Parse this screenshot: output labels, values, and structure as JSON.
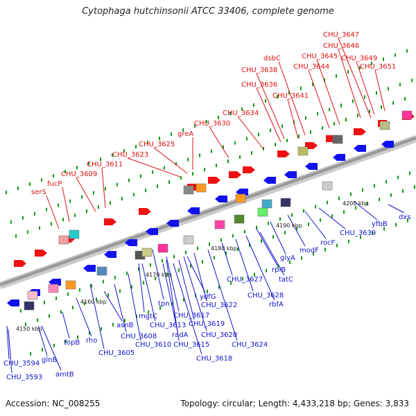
{
  "title": "Cytophaga hutchinsonii ATCC 33406, complete genome",
  "footer": {
    "accession": "Accession: NC_008255",
    "summary": "Topology: circular; Length: 4,433,218 bp; Genes: 3,833"
  },
  "colors": {
    "forward_label": "#dd1111",
    "reverse_label": "#1111cc",
    "backbone": "#999999",
    "tick": "#119911"
  },
  "scale_labels": [
    "4150 kbp",
    "4160 kbp",
    "4170 kbp",
    "4180 kbp",
    "4190 kbp",
    "4200 kbp"
  ],
  "forward_genes": [
    "serS",
    "fucP",
    "CHU_3609",
    "CHU_3611",
    "CHU_3623",
    "CHU_3625",
    "greA",
    "CHU_3630",
    "CHU_3634",
    "CHU_3638",
    "CHU_3636",
    "dsbC",
    "CHU_3641",
    "CHU_3644",
    "CHU_3645",
    "CHU_3646",
    "CHU_3647",
    "CHU_3649",
    "CHU_3651"
  ],
  "reverse_genes": [
    "CHU_3594",
    "CHU_3593",
    "glnB",
    "amtB",
    "topB",
    "rho",
    "CHU_3605",
    "asnB",
    "CHU_3608",
    "CHU_3610",
    "mgtC",
    "CHU_3613",
    "radA",
    "CHU_3615",
    "tpn",
    "CHU_3617",
    "CHU_3618",
    "CHU_3619",
    "ydfG",
    "CHU_3620",
    "CHU_3622",
    "CHU_3624",
    "CHU_3627",
    "CHU_3628",
    "rbfA",
    "tatC",
    "rpiB",
    "glyA",
    "modF",
    "rocF",
    "CHU_3639",
    "yfbB",
    "dxs"
  ]
}
